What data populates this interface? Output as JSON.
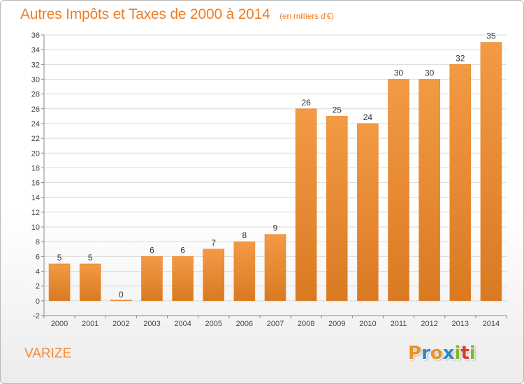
{
  "header": {
    "title": "Autres Impôts et Taxes de 2000 à 2014",
    "unit": "(en milliers d'€)"
  },
  "footer": {
    "commune": "VARIZE",
    "logo_letters": [
      "P",
      "r",
      "o",
      "x",
      "i",
      "t",
      "i"
    ],
    "logo_colors": [
      "#e8932a",
      "#2f86c9",
      "#e8932a",
      "#2f86c9",
      "#84b71c",
      "#d93a2b",
      "#84b71c"
    ]
  },
  "colors": {
    "bar": "#f39a45",
    "bar_dark": "#d97a22",
    "text_accent": "#f07d24",
    "grid": "#d9d9d9"
  },
  "chart_data": {
    "type": "bar",
    "title": "Autres Impôts et Taxes de 2000 à 2014",
    "subtitle": "(en milliers d'€)",
    "categories": [
      "2000",
      "2001",
      "2002",
      "2003",
      "2004",
      "2005",
      "2006",
      "2007",
      "2008",
      "2009",
      "2010",
      "2011",
      "2012",
      "2013",
      "2014"
    ],
    "values": [
      5,
      5,
      0,
      6,
      6,
      7,
      8,
      9,
      26,
      25,
      24,
      30,
      30,
      32,
      35
    ],
    "ylim": [
      -2,
      36
    ],
    "yticks": [
      -2,
      0,
      2,
      4,
      6,
      8,
      10,
      12,
      14,
      16,
      18,
      20,
      22,
      24,
      26,
      28,
      30,
      32,
      34,
      36
    ],
    "grid": true,
    "data_labels": true
  }
}
